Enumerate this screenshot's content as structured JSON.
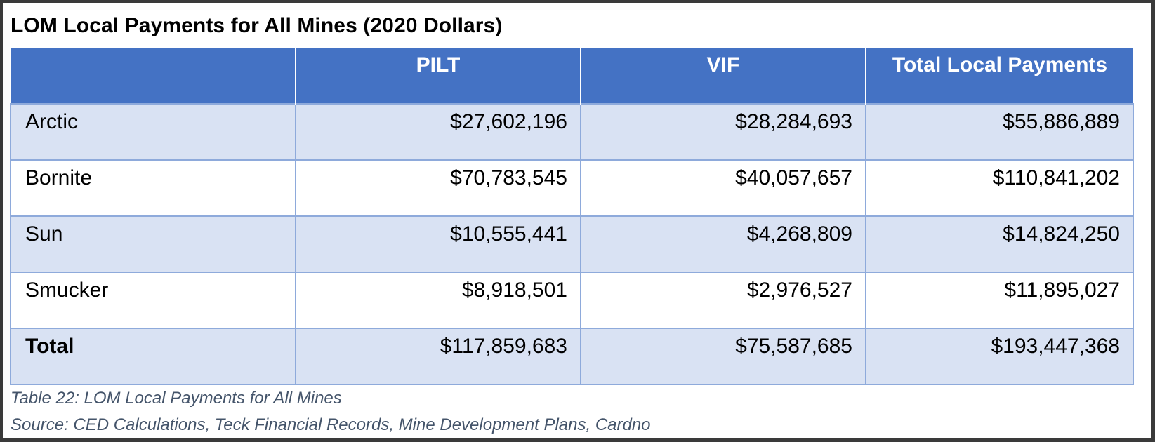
{
  "title": "LOM Local Payments for All Mines (2020 Dollars)",
  "table": {
    "headers": [
      "",
      "PILT",
      "VIF",
      "Total Local Payments"
    ],
    "rows": [
      {
        "name": "Arctic",
        "pilt": "$27,602,196",
        "vif": "$28,284,693",
        "total": "$55,886,889"
      },
      {
        "name": "Bornite",
        "pilt": "$70,783,545",
        "vif": "$40,057,657",
        "total": "$110,841,202"
      },
      {
        "name": "Sun",
        "pilt": "$10,555,441",
        "vif": "$4,268,809",
        "total": "$14,824,250"
      },
      {
        "name": "Smucker",
        "pilt": "$8,918,501",
        "vif": "$2,976,527",
        "total": "$11,895,027"
      }
    ],
    "total_row": {
      "name": "Total",
      "pilt": "$117,859,683",
      "vif": "$75,587,685",
      "total": "$193,447,368"
    }
  },
  "caption": "Table 22: LOM Local Payments for All Mines",
  "source": "Source: CED Calculations, Teck Financial Records, Mine Development Plans, Cardno",
  "colors": {
    "header_bg": "#4472c4",
    "band_bg": "#d9e2f3",
    "grid_line": "#8eaadb",
    "caption_text": "#44546a"
  }
}
